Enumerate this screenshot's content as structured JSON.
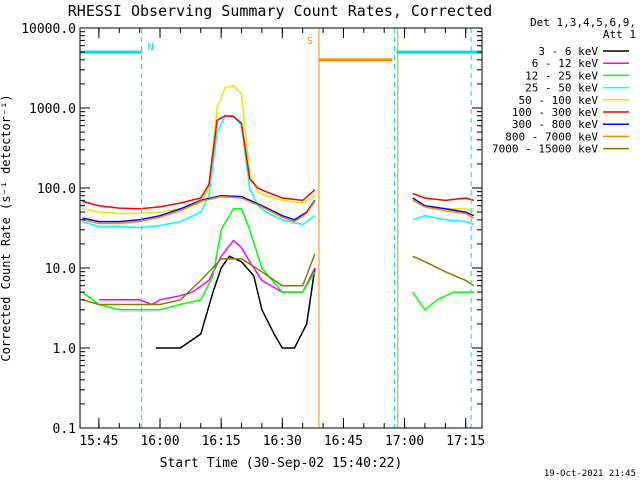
{
  "chart_data": {
    "type": "line",
    "title": "RHESSI Observing Summary Count Rates, Corrected",
    "xlabel": "Start Time (30-Sep-02 15:40:22)",
    "ylabel": "Corrected Count Rate (s⁻¹ detector⁻¹)",
    "ylog": true,
    "ylim": [
      0.1,
      10000
    ],
    "xlim": [
      "15:40:22",
      "17:19:00"
    ],
    "y_ticks": [
      "0.1",
      "1.0",
      "10.0",
      "100.0",
      "1000.0",
      "10000.0"
    ],
    "x_ticks": [
      "15:45",
      "16:00",
      "16:15",
      "16:30",
      "16:45",
      "17:00",
      "17:15"
    ],
    "legend": {
      "position": "top-right",
      "header": [
        "Det 1,3,4,5,6,9,",
        "Att 1"
      ]
    },
    "footer_timestamp": "19-Oct-2021 21:45",
    "series": [
      {
        "name": "3 - 6 keV",
        "color": "#000000",
        "x": [
          "15:59",
          "16:05",
          "16:10",
          "16:13",
          "16:15",
          "16:17",
          "16:20",
          "16:23",
          "16:25",
          "16:28",
          "16:30",
          "16:33",
          "16:36",
          "16:38"
        ],
        "y": [
          1,
          1,
          1.5,
          5,
          10,
          14,
          12,
          8,
          3,
          1.5,
          1,
          1,
          2,
          10
        ]
      },
      {
        "name": "6 - 12 keV",
        "color": "#ff00ff",
        "x": [
          "15:45",
          "15:50",
          "15:55",
          "15:58",
          "16:00",
          "16:05",
          "16:08",
          "16:12",
          "16:15",
          "16:18",
          "16:20",
          "16:22",
          "16:25",
          "16:30",
          "16:35",
          "16:38"
        ],
        "y": [
          4,
          4,
          4,
          3.5,
          4,
          4.5,
          5,
          7,
          14,
          22,
          18,
          12,
          7,
          5,
          5,
          10
        ]
      },
      {
        "name": "12 - 25 keV",
        "color": "#00ff00",
        "x": [
          "15:41",
          "15:45",
          "15:50",
          "15:57",
          "16:00",
          "16:05",
          "16:10",
          "16:13",
          "16:15",
          "16:18",
          "16:20",
          "16:22",
          "16:25",
          "16:30",
          "16:35",
          "16:38",
          "17:02",
          "17:05",
          "17:08",
          "17:12",
          "17:15",
          "17:17"
        ],
        "y": [
          5,
          3.5,
          3,
          3,
          3,
          3.5,
          4,
          8,
          30,
          55,
          55,
          30,
          10,
          5,
          5,
          9,
          5,
          3,
          4,
          5,
          5,
          5
        ]
      },
      {
        "name": "25 - 50 keV",
        "color": "#00ffff",
        "x": [
          "15:41",
          "15:45",
          "15:50",
          "15:55",
          "16:00",
          "16:05",
          "16:10",
          "16:12",
          "16:14",
          "16:16",
          "16:18",
          "16:20",
          "16:22",
          "16:24",
          "16:26",
          "16:30",
          "16:35",
          "16:38",
          "17:02",
          "17:05",
          "17:10",
          "17:15",
          "17:17"
        ],
        "y": [
          38,
          33,
          33,
          32,
          34,
          38,
          50,
          80,
          500,
          800,
          800,
          600,
          100,
          60,
          50,
          40,
          35,
          45,
          40,
          45,
          40,
          38,
          35
        ]
      },
      {
        "name": "50 - 100 keV",
        "color": "#e6e600",
        "x": [
          "15:41",
          "15:45",
          "15:50",
          "15:55",
          "16:00",
          "16:05",
          "16:10",
          "16:12",
          "16:14",
          "16:16",
          "16:18",
          "16:20",
          "16:22",
          "16:24",
          "16:26",
          "16:30",
          "16:35",
          "16:38",
          "17:02",
          "17:05",
          "17:10",
          "17:15",
          "17:17"
        ],
        "y": [
          55,
          50,
          48,
          48,
          50,
          55,
          65,
          100,
          1000,
          1800,
          1900,
          1500,
          150,
          90,
          80,
          70,
          65,
          80,
          70,
          60,
          55,
          55,
          50
        ]
      },
      {
        "name": "100 - 300 keV",
        "color": "#ff0000",
        "x": [
          "15:41",
          "15:45",
          "15:50",
          "15:55",
          "16:00",
          "16:05",
          "16:10",
          "16:12",
          "16:14",
          "16:16",
          "16:18",
          "16:20",
          "16:22",
          "16:24",
          "16:26",
          "16:30",
          "16:35",
          "16:38",
          "17:02",
          "17:05",
          "17:10",
          "17:15",
          "17:17"
        ],
        "y": [
          68,
          60,
          56,
          55,
          58,
          65,
          75,
          110,
          700,
          800,
          780,
          650,
          130,
          100,
          90,
          75,
          70,
          95,
          85,
          75,
          70,
          75,
          70
        ]
      },
      {
        "name": "300 - 800 keV",
        "color": "#0000ff",
        "x": [
          "15:41",
          "15:45",
          "15:50",
          "15:55",
          "16:00",
          "16:05",
          "16:10",
          "16:15",
          "16:20",
          "16:25",
          "16:30",
          "16:33",
          "16:36",
          "16:38",
          "17:02",
          "17:05",
          "17:10",
          "17:15",
          "17:17"
        ],
        "y": [
          42,
          38,
          38,
          40,
          45,
          55,
          70,
          80,
          78,
          60,
          45,
          40,
          50,
          70,
          75,
          60,
          55,
          50,
          45
        ]
      },
      {
        "name": "800 - 7000 keV",
        "color": "#ff8800",
        "x": [
          "15:41",
          "15:45",
          "15:50",
          "15:55",
          "16:00",
          "16:05",
          "16:10",
          "16:15",
          "16:20",
          "16:25",
          "16:30",
          "16:33",
          "16:36",
          "16:38",
          "17:02",
          "17:05",
          "17:10",
          "17:15",
          "17:17"
        ],
        "y": [
          40,
          36,
          36,
          38,
          43,
          52,
          68,
          78,
          75,
          58,
          43,
          38,
          48,
          68,
          70,
          58,
          52,
          48,
          42
        ]
      },
      {
        "name": "7000 - 15000 keV",
        "color": "#808000",
        "x": [
          "15:41",
          "15:45",
          "15:50",
          "15:55",
          "16:00",
          "16:05",
          "16:10",
          "16:15",
          "16:20",
          "16:25",
          "16:30",
          "16:35",
          "16:38",
          "17:02",
          "17:05",
          "17:10",
          "17:15",
          "17:17"
        ],
        "y": [
          4,
          3.5,
          3.5,
          3.5,
          3.5,
          4,
          7,
          13,
          13,
          9,
          6,
          6,
          15,
          14,
          12,
          9,
          7,
          6
        ]
      }
    ],
    "annotations": [
      {
        "label": "N",
        "color": "#00dddd"
      },
      {
        "label": "S",
        "color": "#ff8800"
      }
    ],
    "night_bar": {
      "color": "#00dddd",
      "y": 5000,
      "segments": [
        [
          "15:40:22",
          "15:55:30"
        ],
        [
          "16:58:00",
          "17:19:00"
        ]
      ]
    },
    "saa_bar": {
      "color": "#ff8800",
      "y": 4000,
      "segments": [
        [
          "16:39:00",
          "16:57:00"
        ]
      ]
    },
    "night_lines": [
      "15:40:22",
      "15:55:30",
      "16:57:30",
      "17:16:20"
    ],
    "saa_lines": [
      "16:39:00",
      "16:58:20"
    ]
  }
}
